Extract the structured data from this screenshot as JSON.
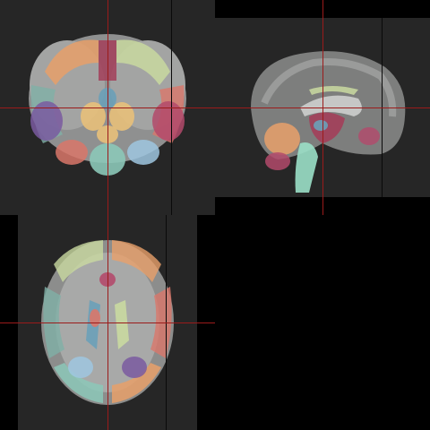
{
  "viewer": {
    "layout": "2x2",
    "background": "#000000",
    "panel_color": "#262626",
    "crosshair_color": "#9b1b1b",
    "views": [
      {
        "name": "coronal",
        "position": "top-left"
      },
      {
        "name": "sagittal",
        "position": "top-right"
      },
      {
        "name": "axial",
        "position": "bottom-left"
      },
      {
        "name": "empty",
        "position": "bottom-right"
      }
    ]
  },
  "segmentation": {
    "label_colors": [
      "#e8a06a",
      "#c9d9a0",
      "#7fb0a6",
      "#a33f5a",
      "#d9776a",
      "#9fc7e0",
      "#6aa0b8",
      "#b34a6b",
      "#e8c07a",
      "#8cc8b8",
      "#7a5aa0",
      "#d85a6a",
      "#9be0c8",
      "#e08a78"
    ]
  }
}
